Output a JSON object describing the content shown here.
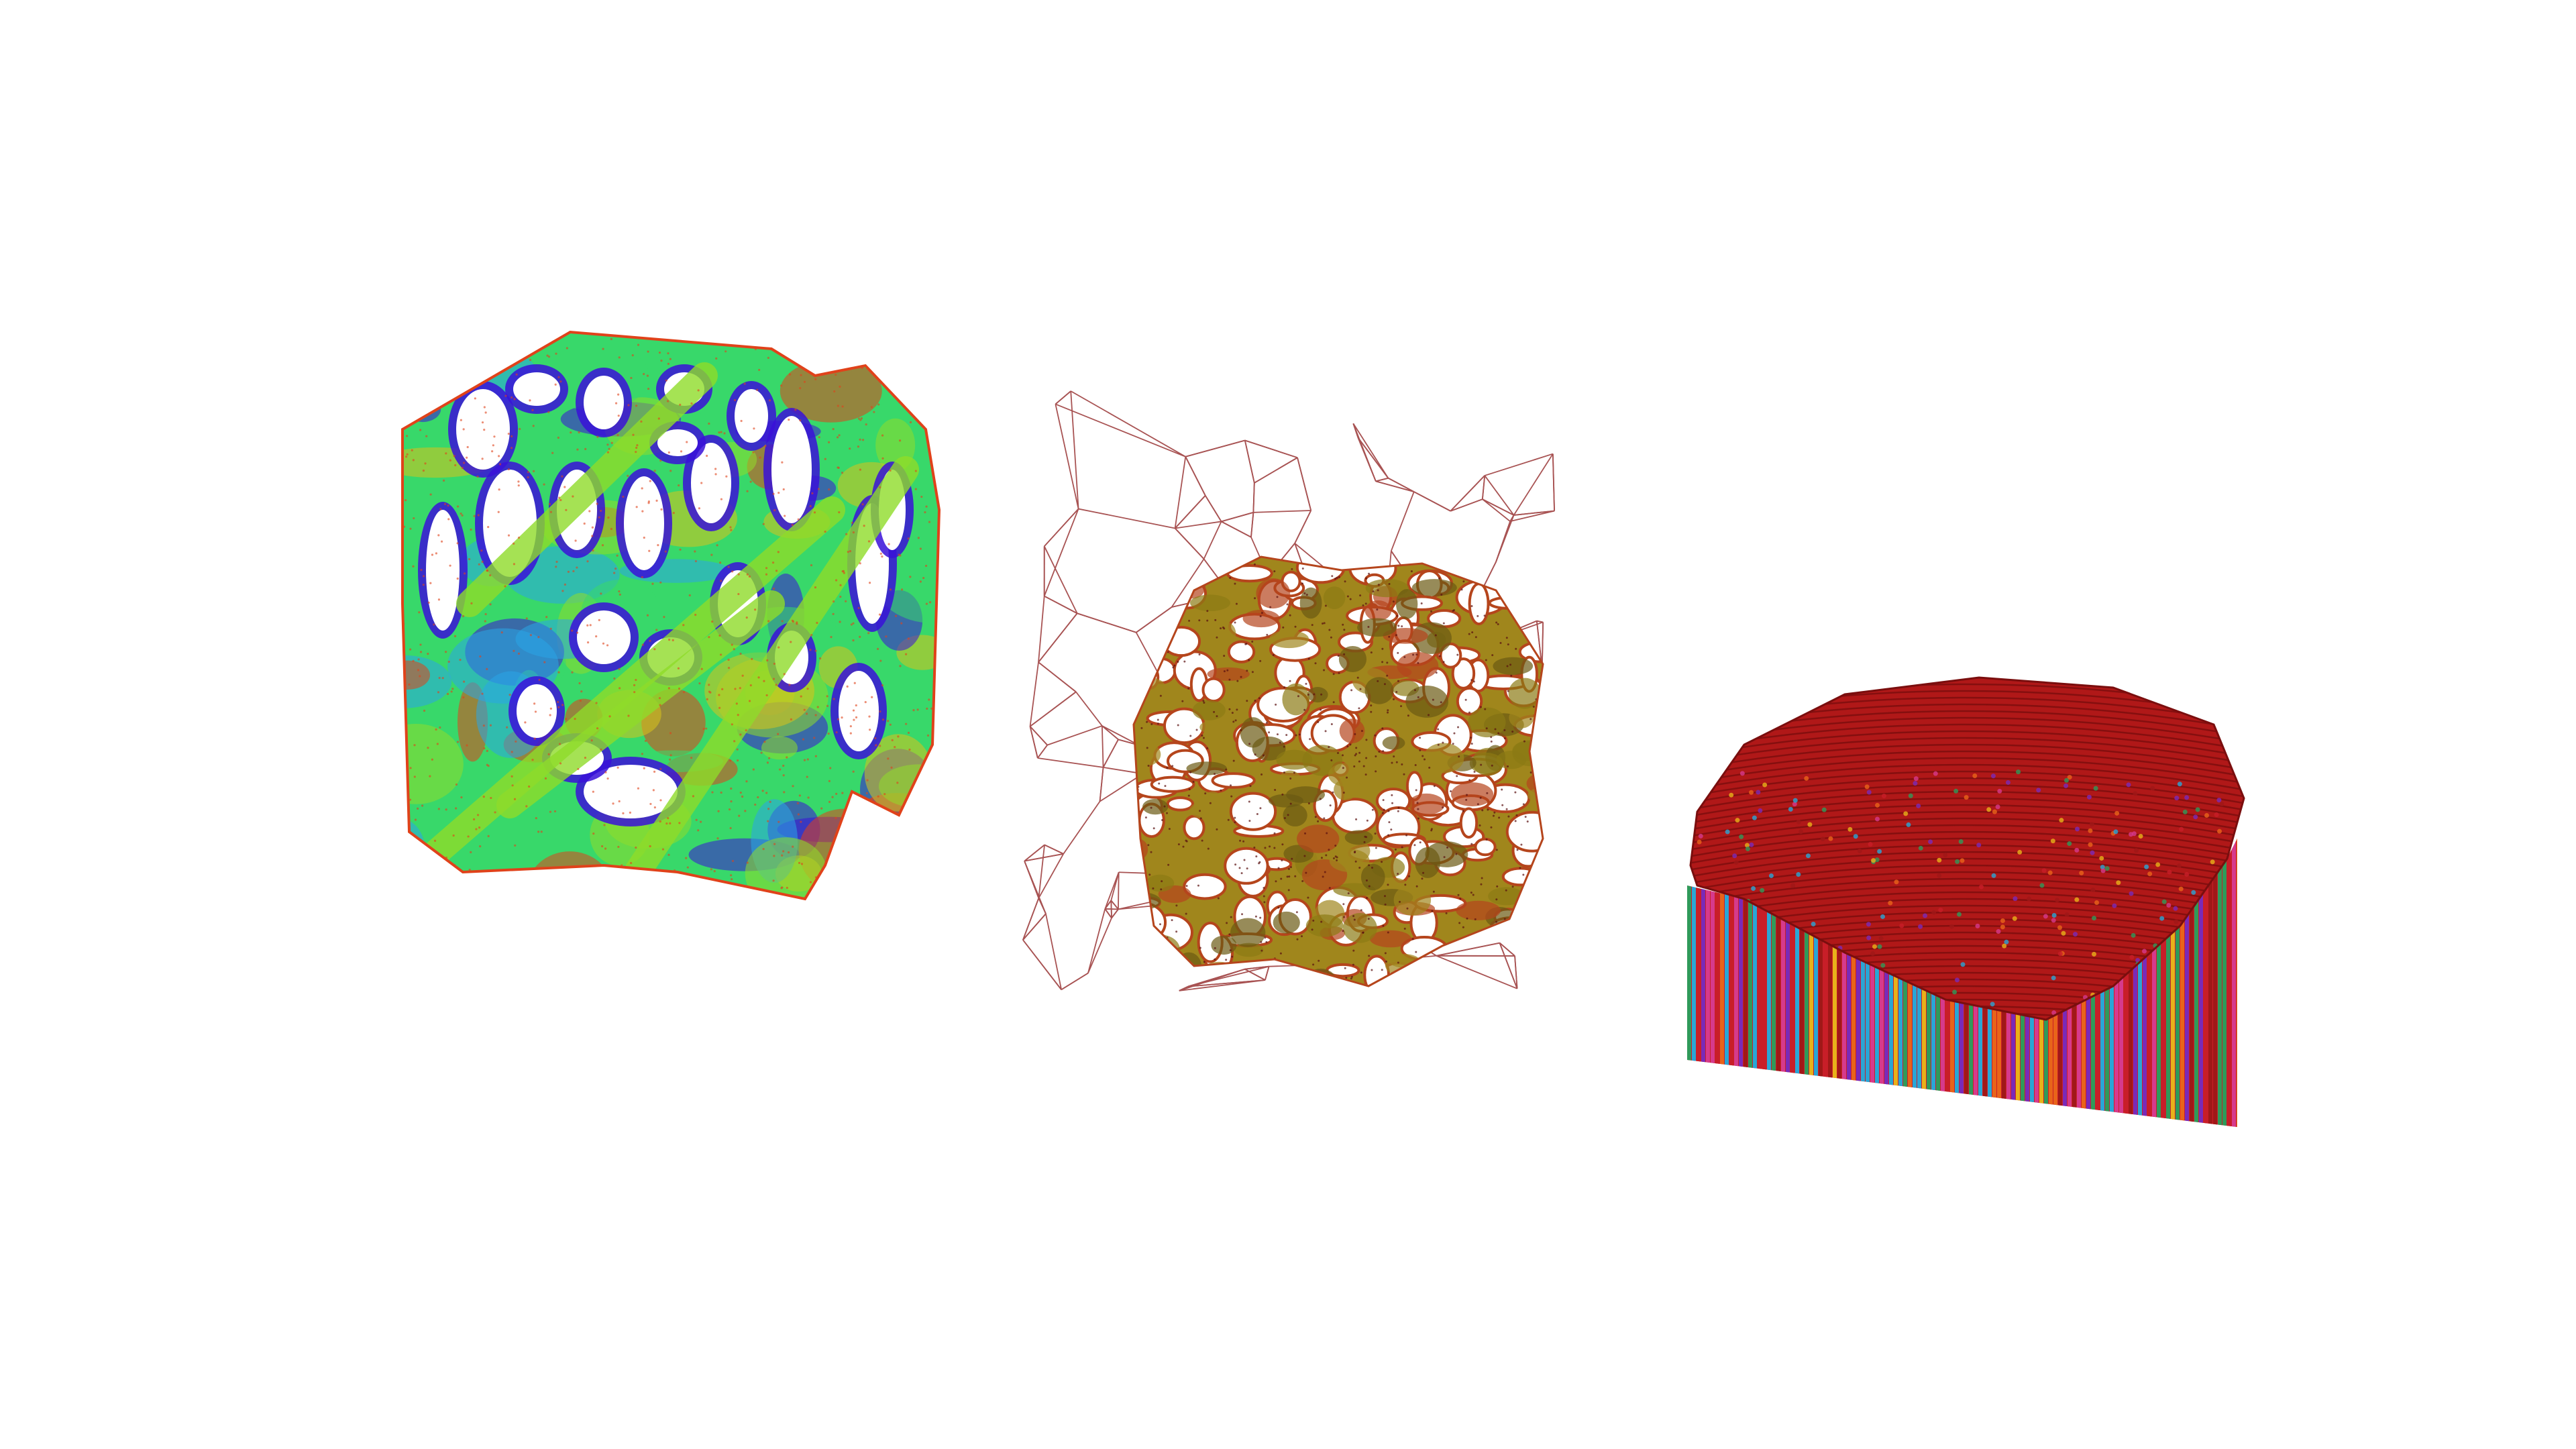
{
  "scene": {
    "background": "#ffffff",
    "objects": [
      {
        "name": "gyroid-lattice-tower",
        "colormap": [
          "#3a10d8",
          "#29a6e6",
          "#38d86a",
          "#8fdc2a",
          "#d9c21a",
          "#e0421a"
        ]
      },
      {
        "name": "voronoi-foam-cube",
        "wireframe_color": "#8b1a1a",
        "surface_colors": [
          "#8c7a14",
          "#a0861c",
          "#b5451c",
          "#6b5a12"
        ]
      },
      {
        "name": "strand-block",
        "top_color": "#b01818",
        "strand_colors": [
          "#c81e28",
          "#e8641a",
          "#29a6d6",
          "#d63a8c",
          "#7a2ab8",
          "#e8b21a",
          "#2f9a5a",
          "#a01818"
        ]
      }
    ]
  }
}
